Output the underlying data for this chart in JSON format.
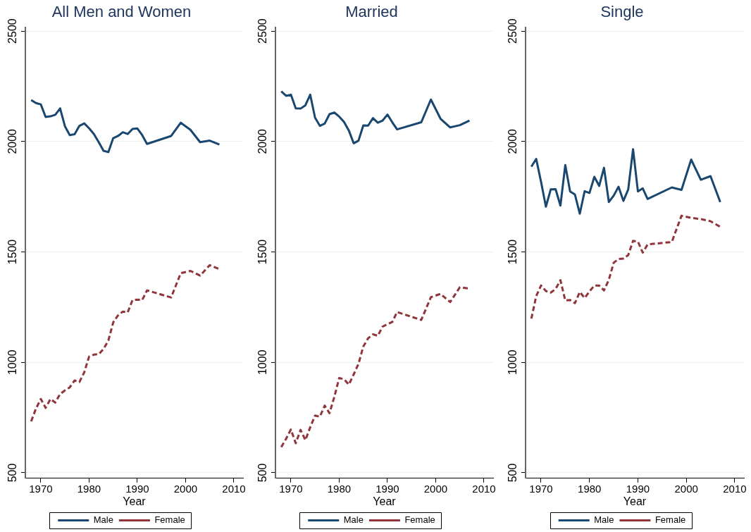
{
  "chart_data": [
    {
      "type": "line",
      "title": "All Men and Women",
      "xlabel": "Year",
      "x": [
        1968,
        1969,
        1970,
        1971,
        1972,
        1973,
        1974,
        1975,
        1976,
        1977,
        1978,
        1979,
        1980,
        1981,
        1982,
        1983,
        1984,
        1985,
        1986,
        1987,
        1988,
        1989,
        1990,
        1991,
        1992,
        1997,
        1999,
        2001,
        2003,
        2005,
        2007
      ],
      "series": [
        {
          "name": "Male",
          "color": "#1a476f",
          "line_style": "solid",
          "values": [
            2188,
            2174,
            2168,
            2111,
            2114,
            2121,
            2150,
            2069,
            2029,
            2033,
            2071,
            2082,
            2060,
            2034,
            1997,
            1958,
            1952,
            2015,
            2025,
            2042,
            2034,
            2057,
            2059,
            2029,
            1989,
            2025,
            2085,
            2053,
            1997,
            2004,
            1986
          ]
        },
        {
          "name": "Female",
          "color": "#90353b",
          "line_style": "dashed",
          "values": [
            733,
            791,
            834,
            794,
            834,
            818,
            857,
            873,
            887,
            918,
            911,
            955,
            1026,
            1035,
            1037,
            1061,
            1099,
            1181,
            1213,
            1230,
            1226,
            1282,
            1284,
            1282,
            1326,
            1294,
            1404,
            1414,
            1393,
            1440,
            1422
          ]
        }
      ],
      "xlim": [
        1966.8,
        2011.9
      ],
      "xticks": [
        1970,
        1980,
        1990,
        2000,
        2010
      ],
      "ylim": [
        475,
        2515
      ],
      "yticks": [
        500,
        1000,
        1500,
        2000,
        2500
      ],
      "grid": "y",
      "legend": "bottom",
      "marker": "none"
    },
    {
      "type": "line",
      "title": "Married",
      "xlabel": "Year",
      "x": [
        1968,
        1969,
        1970,
        1971,
        1972,
        1973,
        1974,
        1975,
        1976,
        1977,
        1978,
        1979,
        1980,
        1981,
        1982,
        1983,
        1984,
        1985,
        1986,
        1987,
        1988,
        1989,
        1990,
        1991,
        1992,
        1997,
        1999,
        2001,
        2003,
        2005,
        2007
      ],
      "series": [
        {
          "name": "Male",
          "color": "#1a476f",
          "line_style": "solid",
          "values": [
            2227,
            2207,
            2212,
            2150,
            2149,
            2164,
            2212,
            2108,
            2071,
            2081,
            2124,
            2131,
            2113,
            2089,
            2050,
            1992,
            2004,
            2073,
            2072,
            2106,
            2085,
            2095,
            2122,
            2087,
            2055,
            2087,
            2190,
            2103,
            2064,
            2074,
            2095
          ]
        },
        {
          "name": "Female",
          "color": "#90353b",
          "line_style": "dashed",
          "values": [
            616,
            654,
            696,
            634,
            694,
            648,
            706,
            759,
            754,
            804,
            770,
            844,
            929,
            924,
            899,
            945,
            993,
            1072,
            1109,
            1127,
            1120,
            1162,
            1173,
            1183,
            1228,
            1192,
            1295,
            1310,
            1273,
            1340,
            1334
          ]
        }
      ],
      "xlim": [
        1966.8,
        2011.9
      ],
      "xticks": [
        1970,
        1980,
        1990,
        2000,
        2010
      ],
      "ylim": [
        475,
        2515
      ],
      "yticks": [
        500,
        1000,
        1500,
        2000,
        2500
      ],
      "grid": "y",
      "legend": "bottom",
      "marker": "none"
    },
    {
      "type": "line",
      "title": "Single",
      "xlabel": "Year",
      "x": [
        1968,
        1969,
        1970,
        1971,
        1972,
        1973,
        1974,
        1975,
        1976,
        1977,
        1978,
        1979,
        1980,
        1981,
        1982,
        1983,
        1984,
        1985,
        1986,
        1987,
        1988,
        1989,
        1990,
        1991,
        1992,
        1997,
        1999,
        2001,
        2003,
        2005,
        2007
      ],
      "series": [
        {
          "name": "Male",
          "color": "#1a476f",
          "line_style": "solid",
          "values": [
            1886,
            1921,
            1817,
            1705,
            1783,
            1784,
            1710,
            1893,
            1774,
            1760,
            1673,
            1775,
            1767,
            1840,
            1799,
            1881,
            1726,
            1755,
            1795,
            1731,
            1783,
            1965,
            1774,
            1788,
            1740,
            1792,
            1781,
            1918,
            1827,
            1843,
            1726
          ]
        },
        {
          "name": "Female",
          "color": "#90353b",
          "line_style": "dashed",
          "values": [
            1198,
            1300,
            1348,
            1323,
            1316,
            1332,
            1372,
            1280,
            1282,
            1268,
            1319,
            1291,
            1321,
            1348,
            1348,
            1326,
            1374,
            1451,
            1468,
            1470,
            1486,
            1550,
            1547,
            1497,
            1534,
            1545,
            1664,
            1654,
            1649,
            1639,
            1614
          ]
        }
      ],
      "xlim": [
        1966.8,
        2011.9
      ],
      "xticks": [
        1970,
        1980,
        1990,
        2000,
        2010
      ],
      "ylim": [
        475,
        2515
      ],
      "yticks": [
        500,
        1000,
        1500,
        2000,
        2500
      ],
      "grid": "y",
      "legend": "bottom",
      "marker": "none"
    }
  ]
}
